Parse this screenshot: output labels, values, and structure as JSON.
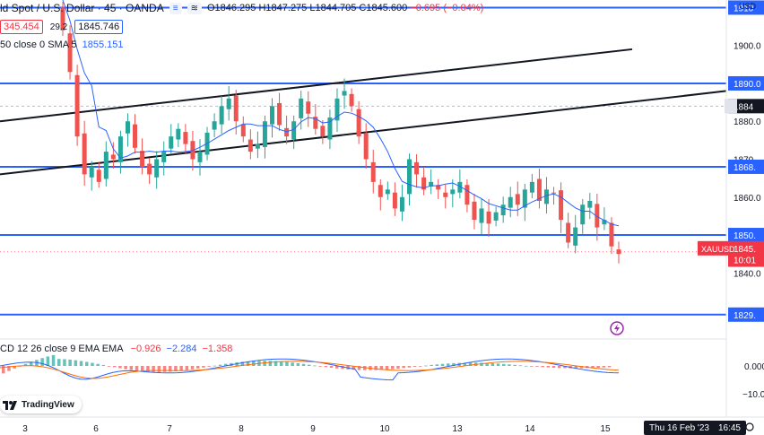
{
  "header": {
    "symbol_title": "ld Spot / U.S. Dollar · 45 · OANDA",
    "badge_left": "≡",
    "badge_right": "≋",
    "ohlc": {
      "o": "O1846.295",
      "h": "H1847.275",
      "l": "L1844.705",
      "c": "C1845.600",
      "chg": "−0.695 (−0.04%)"
    },
    "sell_price": "345.454",
    "spread": "29.2",
    "buy_price": "1845.746",
    "indicator_1": "50 close 0 SMA 5",
    "indicator_1_value": "1855.151"
  },
  "macd": {
    "label": "CD 12 26 close 9 EMA EMA",
    "values": [
      "−0.926",
      "−2.284",
      "−1.358"
    ]
  },
  "logo_text": "TradingView",
  "price_axis": {
    "currency": "USD",
    "ticks": [
      "1910",
      "1900.0",
      "1890.0",
      "1884",
      "1880.0",
      "1870",
      "1868.",
      "1860.0",
      "1850.",
      "1845.",
      "10:01",
      "1840.0",
      "1829."
    ],
    "macd_ticks": [
      "0.000",
      "−10.00"
    ],
    "symbol_tag": "XAUUSD"
  },
  "time_axis": {
    "labels": [
      "3",
      "6",
      "7",
      "8",
      "9",
      "10",
      "13",
      "14",
      "15"
    ],
    "cursor_date": "Thu 16 Feb '23",
    "cursor_time": "16:45"
  },
  "colors": {
    "up": "#26a69a",
    "down": "#ef5350",
    "sma": "#2962ff",
    "hline": "#2962ff",
    "trend": "#131722",
    "macd_line": "#2962ff",
    "signal_line": "#ff6d00"
  },
  "chart_data": {
    "type": "candlestick",
    "symbol": "XAUUSD",
    "interval": "45",
    "x": [
      "3",
      "6",
      "7",
      "8",
      "9",
      "10",
      "13",
      "14",
      "15"
    ],
    "y_range": [
      1828,
      1912
    ],
    "horizontal_levels": [
      1910,
      1890,
      1868,
      1850,
      1829
    ],
    "trend_channel": {
      "upper": [
        [
          0,
          1880
        ],
        [
          800,
          1903
        ]
      ],
      "lower": [
        [
          0,
          1866
        ],
        [
          852,
          1889
        ]
      ]
    },
    "candles_close": [
      1904,
      1893,
      1876,
      1866,
      1868,
      1864,
      1872,
      1870,
      1876,
      1880,
      1873,
      1868,
      1866,
      1870,
      1872,
      1876,
      1878,
      1874,
      1870,
      1872,
      1877,
      1880,
      1884,
      1886,
      1880,
      1876,
      1872,
      1874,
      1880,
      1884,
      1879,
      1876,
      1880,
      1886,
      1882,
      1878,
      1876,
      1881,
      1886,
      1888,
      1884,
      1876,
      1870,
      1864,
      1860,
      1862,
      1857,
      1860,
      1870,
      1866,
      1862,
      1864,
      1862,
      1860,
      1862,
      1864,
      1858,
      1854,
      1857,
      1853,
      1856,
      1858,
      1860,
      1858,
      1862,
      1864,
      1859,
      1862,
      1861,
      1854,
      1848,
      1852,
      1858,
      1859,
      1852,
      1854,
      1847,
      1845
    ],
    "sma_value": 1855.151,
    "last_price": 1845.6,
    "macd_values": {
      "macd": -0.926,
      "signal": -2.284,
      "hist": -1.358
    }
  }
}
